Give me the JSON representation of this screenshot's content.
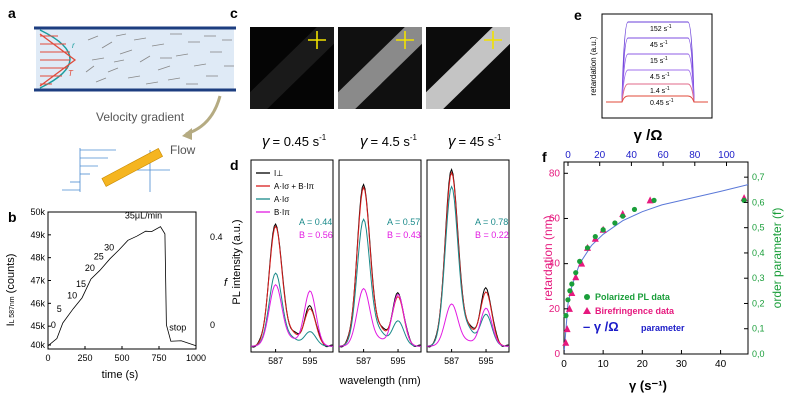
{
  "panels": {
    "a": {
      "letter": "a",
      "labels": {
        "r": "r",
        "T": "T",
        "velocity": "Velocity gradient",
        "flow": "Flow"
      }
    },
    "b": {
      "letter": "b",
      "ylabel": "I",
      "ylabel_sub": "L 587nm",
      "ylabel_unit": " (counts)",
      "xlabel": "time (s)",
      "right_label": "f",
      "yticks": [
        "40k",
        "45k",
        "46k",
        "47k",
        "48k",
        "49k",
        "50k"
      ],
      "xticks": [
        "0",
        "250",
        "500",
        "750",
        "1000"
      ],
      "rticks": [
        "0",
        "0.4"
      ],
      "flow_labels": [
        "0",
        "5",
        "10",
        "15",
        "20",
        "25",
        "30",
        "35μL/min",
        "stop"
      ]
    },
    "c": {
      "letter": "c",
      "rates": [
        {
          "symbol": "γ",
          "value": "= 0.45 s",
          "exp": "-1"
        },
        {
          "symbol": "γ",
          "value": "= 4.5 s",
          "exp": "-1"
        },
        {
          "symbol": "γ",
          "value": "= 45 s",
          "exp": "-1"
        }
      ]
    },
    "d": {
      "letter": "d",
      "ylabel": "PL intensity (a.u.)",
      "xlabel": "wavelength (nm)",
      "xticks": [
        "587",
        "595"
      ],
      "legend": [
        "I⊥",
        "A·Iσ + B·Iπ",
        "A·Iσ",
        "B·Iπ"
      ],
      "fits": [
        {
          "A": "A = 0.44",
          "B": "B = 0.56"
        },
        {
          "A": "A = 0.57",
          "B": "B = 0.43"
        },
        {
          "A": "A = 0.78",
          "B": "B = 0.22"
        }
      ]
    },
    "e": {
      "letter": "e",
      "ylabel": "retardation (a.u.)",
      "steps": [
        "152 s",
        "45 s",
        "15 s",
        "4.5 s",
        "1.4 s",
        "0.45 s"
      ],
      "exp": "-1"
    },
    "f": {
      "letter": "f",
      "ylabel_left": "retardation (nm)",
      "ylabel_right": "order parameter (f)",
      "xlabel_bottom": "γ (s⁻¹)",
      "xlabel_top": "γ /Ω",
      "yticks_left": [
        "0",
        "20",
        "40",
        "60",
        "80"
      ],
      "yticks_right": [
        "0,0",
        "0,1",
        "0,2",
        "0,3",
        "0,4",
        "0,5",
        "0,6",
        "0,7"
      ],
      "xticks_bottom": [
        "0",
        "10",
        "20",
        "30",
        "40"
      ],
      "xticks_top": [
        "0",
        "20",
        "40",
        "60",
        "80",
        "100"
      ],
      "legend": [
        {
          "label": "Polarized PL data",
          "color": "#1a9e3a"
        },
        {
          "label": "Birefringence data",
          "color": "#e6197e"
        },
        {
          "label": "parameter",
          "prefix": "γ /Ω",
          "color": "#1c1cc8"
        }
      ]
    }
  },
  "chart_data": [
    {
      "type": "line",
      "title": "b",
      "xlabel": "time (s)",
      "ylabel": "IL 587nm (counts)",
      "xlim": [
        0,
        1000
      ],
      "ylim": [
        44000,
        50000
      ],
      "series": [
        {
          "name": "intensity",
          "x": [
            0,
            60,
            100,
            170,
            230,
            290,
            350,
            420,
            480,
            540,
            600,
            660,
            700,
            760,
            790,
            800,
            830,
            900,
            1000
          ],
          "y": [
            44200,
            44400,
            45200,
            45700,
            46300,
            47000,
            47500,
            47900,
            48400,
            48700,
            49000,
            49100,
            49200,
            49300,
            49100,
            45000,
            44400,
            44300,
            44200
          ]
        }
      ],
      "flow_labels_at": [
        60,
        100,
        170,
        230,
        290,
        350,
        420,
        560,
        860
      ]
    },
    {
      "type": "scatter",
      "title": "f",
      "xlabel": "γ (s-1)",
      "ylabel": "retardation (nm)",
      "xlim": [
        0,
        47
      ],
      "ylim": [
        0,
        85
      ],
      "series": [
        {
          "name": "Polarized PL data",
          "x": [
            0.5,
            1,
            1.5,
            2,
            3,
            4,
            6,
            8,
            10,
            13,
            15,
            18,
            23,
            46
          ],
          "y": [
            17,
            24,
            28,
            31,
            36,
            41,
            47,
            52,
            55,
            58,
            61,
            64,
            68,
            68
          ]
        },
        {
          "name": "Birefringence data",
          "x": [
            0.45,
            0.8,
            1.4,
            2,
            3,
            4.5,
            6,
            8,
            10,
            15,
            22,
            46
          ],
          "y": [
            5,
            11,
            20,
            27,
            34,
            40,
            47,
            51,
            55,
            62,
            68,
            69
          ]
        },
        {
          "name": "fit",
          "x": [
            0,
            1,
            2,
            4,
            7,
            10,
            15,
            20,
            25,
            30,
            35,
            40,
            47
          ],
          "y": [
            0,
            22,
            30,
            40,
            48,
            53,
            59,
            63,
            66,
            68,
            70,
            72,
            75
          ]
        }
      ]
    }
  ]
}
